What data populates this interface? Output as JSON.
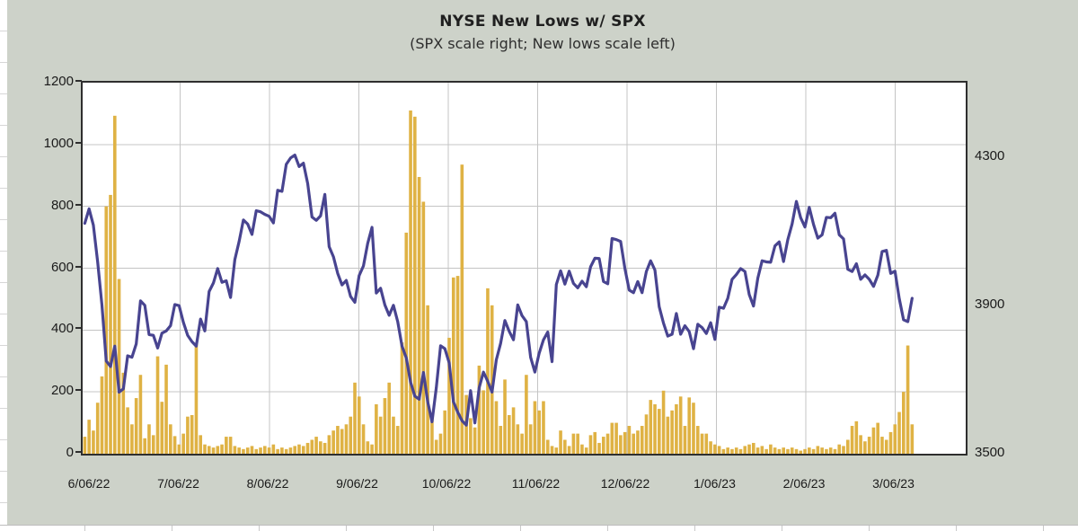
{
  "chart": {
    "title": "NYSE New Lows w/ SPX",
    "subtitle": "(SPX scale right; New lows scale left)"
  },
  "colors": {
    "chart_background": "#cdd2c9",
    "plot_background": "#ffffff",
    "bar_color": "#dfb244",
    "line_color": "#484490",
    "gridline_color": "#c4c4c4",
    "axis_text_color": "#1a1a1a",
    "plot_border_color": "#2e2e2e"
  },
  "chart_data": {
    "type": "bar",
    "subtype": "bar-and-line combo, daily data",
    "title": "NYSE New Lows w/ SPX",
    "subtitle": "(SPX scale right; New lows scale left)",
    "grid": "horizontal and vertical major gridlines",
    "legend": "none",
    "left_axis": {
      "title": "New lows",
      "min": 0,
      "max": 1200,
      "tick_step": 200,
      "tick_labels": [
        "0",
        "200",
        "400",
        "600",
        "800",
        "1000",
        "1200"
      ]
    },
    "right_axis": {
      "title": "SPX",
      "min": 3500,
      "max": 4500,
      "tick_values": [
        3500,
        3900,
        4300
      ],
      "tick_labels": [
        "3500",
        "3900",
        "4300"
      ]
    },
    "x_axis_tick_labels": [
      "6/06/22",
      "7/06/22",
      "8/06/22",
      "9/06/22",
      "10/06/22",
      "11/06/22",
      "12/06/22",
      "1/06/23",
      "2/06/23",
      "3/06/23"
    ],
    "x": [
      "2022-06-06",
      "2022-06-07",
      "2022-06-08",
      "2022-06-09",
      "2022-06-10",
      "2022-06-13",
      "2022-06-14",
      "2022-06-15",
      "2022-06-16",
      "2022-06-17",
      "2022-06-21",
      "2022-06-22",
      "2022-06-23",
      "2022-06-24",
      "2022-06-27",
      "2022-06-28",
      "2022-06-29",
      "2022-06-30",
      "2022-07-01",
      "2022-07-05",
      "2022-07-06",
      "2022-07-07",
      "2022-07-08",
      "2022-07-11",
      "2022-07-12",
      "2022-07-13",
      "2022-07-14",
      "2022-07-15",
      "2022-07-18",
      "2022-07-19",
      "2022-07-20",
      "2022-07-21",
      "2022-07-22",
      "2022-07-25",
      "2022-07-26",
      "2022-07-27",
      "2022-07-28",
      "2022-07-29",
      "2022-08-01",
      "2022-08-02",
      "2022-08-03",
      "2022-08-04",
      "2022-08-05",
      "2022-08-08",
      "2022-08-09",
      "2022-08-10",
      "2022-08-11",
      "2022-08-12",
      "2022-08-15",
      "2022-08-16",
      "2022-08-17",
      "2022-08-18",
      "2022-08-19",
      "2022-08-22",
      "2022-08-23",
      "2022-08-24",
      "2022-08-25",
      "2022-08-26",
      "2022-08-29",
      "2022-08-30",
      "2022-08-31",
      "2022-09-01",
      "2022-09-02",
      "2022-09-06",
      "2022-09-07",
      "2022-09-08",
      "2022-09-09",
      "2022-09-12",
      "2022-09-13",
      "2022-09-14",
      "2022-09-15",
      "2022-09-16",
      "2022-09-19",
      "2022-09-20",
      "2022-09-21",
      "2022-09-22",
      "2022-09-23",
      "2022-09-26",
      "2022-09-27",
      "2022-09-28",
      "2022-09-29",
      "2022-09-30",
      "2022-10-03",
      "2022-10-04",
      "2022-10-05",
      "2022-10-06",
      "2022-10-07",
      "2022-10-10",
      "2022-10-11",
      "2022-10-12",
      "2022-10-13",
      "2022-10-14",
      "2022-10-17",
      "2022-10-18",
      "2022-10-19",
      "2022-10-20",
      "2022-10-21",
      "2022-10-24",
      "2022-10-25",
      "2022-10-26",
      "2022-10-27",
      "2022-10-28",
      "2022-10-31",
      "2022-11-01",
      "2022-11-02",
      "2022-11-03",
      "2022-11-04",
      "2022-11-07",
      "2022-11-08",
      "2022-11-09",
      "2022-11-10",
      "2022-11-11",
      "2022-11-14",
      "2022-11-15",
      "2022-11-16",
      "2022-11-17",
      "2022-11-18",
      "2022-11-21",
      "2022-11-22",
      "2022-11-23",
      "2022-11-25",
      "2022-11-28",
      "2022-11-29",
      "2022-11-30",
      "2022-12-01",
      "2022-12-02",
      "2022-12-05",
      "2022-12-06",
      "2022-12-07",
      "2022-12-08",
      "2022-12-09",
      "2022-12-12",
      "2022-12-13",
      "2022-12-14",
      "2022-12-15",
      "2022-12-16",
      "2022-12-19",
      "2022-12-20",
      "2022-12-21",
      "2022-12-22",
      "2022-12-23",
      "2022-12-27",
      "2022-12-28",
      "2022-12-29",
      "2022-12-30",
      "2023-01-03",
      "2023-01-04",
      "2023-01-05",
      "2023-01-06",
      "2023-01-09",
      "2023-01-10",
      "2023-01-11",
      "2023-01-12",
      "2023-01-13",
      "2023-01-17",
      "2023-01-18",
      "2023-01-19",
      "2023-01-20",
      "2023-01-23",
      "2023-01-24",
      "2023-01-25",
      "2023-01-26",
      "2023-01-27",
      "2023-01-30",
      "2023-01-31",
      "2023-02-01",
      "2023-02-02",
      "2023-02-03",
      "2023-02-06",
      "2023-02-07",
      "2023-02-08",
      "2023-02-09",
      "2023-02-10",
      "2023-02-13",
      "2023-02-14",
      "2023-02-15",
      "2023-02-16",
      "2023-02-17",
      "2023-02-21",
      "2023-02-22",
      "2023-02-23",
      "2023-02-24",
      "2023-02-27",
      "2023-02-28",
      "2023-03-01",
      "2023-03-02",
      "2023-03-03",
      "2023-03-06",
      "2023-03-07",
      "2023-03-08",
      "2023-03-09",
      "2023-03-10",
      "2023-03-13",
      "2023-03-14"
    ],
    "series": [
      {
        "name": "NYSE New Lows",
        "type": "bar",
        "axis": "left",
        "color": "#dfb244",
        "values": [
          55,
          110,
          75,
          165,
          250,
          800,
          837,
          1093,
          565,
          262,
          150,
          95,
          180,
          255,
          50,
          95,
          60,
          315,
          168,
          288,
          95,
          57,
          30,
          65,
          120,
          125,
          355,
          60,
          30,
          25,
          20,
          25,
          30,
          55,
          55,
          25,
          20,
          15,
          20,
          25,
          15,
          20,
          25,
          20,
          30,
          15,
          20,
          15,
          20,
          25,
          30,
          25,
          35,
          45,
          55,
          40,
          35,
          60,
          75,
          90,
          80,
          95,
          120,
          230,
          185,
          95,
          40,
          30,
          160,
          120,
          180,
          230,
          120,
          90,
          360,
          715,
          1110,
          1090,
          895,
          815,
          480,
          130,
          45,
          65,
          140,
          375,
          570,
          575,
          935,
          190,
          115,
          85,
          285,
          205,
          535,
          480,
          170,
          90,
          240,
          125,
          150,
          95,
          65,
          255,
          95,
          170,
          140,
          170,
          45,
          25,
          20,
          75,
          45,
          25,
          65,
          65,
          30,
          20,
          60,
          70,
          35,
          55,
          65,
          100,
          100,
          60,
          70,
          90,
          65,
          75,
          90,
          127,
          174,
          160,
          145,
          204,
          120,
          140,
          160,
          185,
          90,
          182,
          165,
          90,
          65,
          65,
          40,
          30,
          25,
          15,
          20,
          15,
          20,
          15,
          25,
          30,
          35,
          20,
          25,
          15,
          30,
          20,
          15,
          20,
          15,
          20,
          15,
          10,
          15,
          20,
          15,
          25,
          20,
          15,
          20,
          15,
          30,
          25,
          45,
          90,
          105,
          60,
          40,
          55,
          85,
          100,
          55,
          45,
          70,
          95,
          135,
          200,
          350,
          95
        ]
      },
      {
        "name": "SPX",
        "type": "line",
        "axis": "right",
        "color": "#484490",
        "values": [
          4121,
          4160,
          4116,
          4017,
          3901,
          3750,
          3735,
          3790,
          3666,
          3675,
          3764,
          3760,
          3796,
          3912,
          3900,
          3821,
          3819,
          3785,
          3825,
          3831,
          3845,
          3902,
          3899,
          3854,
          3819,
          3802,
          3790,
          3863,
          3831,
          3937,
          3960,
          3999,
          3962,
          3966,
          3921,
          4023,
          4072,
          4130,
          4119,
          4091,
          4155,
          4152,
          4145,
          4140,
          4122,
          4210,
          4207,
          4280,
          4297,
          4305,
          4274,
          4283,
          4228,
          4138,
          4129,
          4141,
          4199,
          4058,
          4031,
          3986,
          3955,
          3967,
          3924,
          3908,
          3980,
          4006,
          4067,
          4110,
          3933,
          3946,
          3901,
          3873,
          3900,
          3856,
          3790,
          3758,
          3693,
          3655,
          3647,
          3719,
          3640,
          3586,
          3678,
          3791,
          3783,
          3745,
          3640,
          3612,
          3589,
          3577,
          3670,
          3583,
          3678,
          3720,
          3695,
          3666,
          3753,
          3797,
          3859,
          3830,
          3807,
          3901,
          3872,
          3856,
          3760,
          3720,
          3771,
          3807,
          3828,
          3748,
          3956,
          3993,
          3957,
          3992,
          3959,
          3947,
          3965,
          3950,
          4004,
          4027,
          4026,
          3964,
          3958,
          4080,
          4077,
          4072,
          3999,
          3941,
          3934,
          3964,
          3934,
          3991,
          4020,
          3995,
          3896,
          3852,
          3817,
          3822,
          3878,
          3822,
          3845,
          3829,
          3783,
          3849,
          3840,
          3824,
          3853,
          3808,
          3895,
          3892,
          3919,
          3970,
          3983,
          3999,
          3991,
          3929,
          3898,
          3973,
          4020,
          4017,
          4016,
          4060,
          4071,
          4018,
          4077,
          4119,
          4180,
          4136,
          4111,
          4164,
          4118,
          4081,
          4090,
          4137,
          4136,
          4148,
          4090,
          4079,
          3997,
          3991,
          4012,
          3970,
          3982,
          3970,
          3951,
          3981,
          4045,
          4048,
          3986,
          3992,
          3918,
          3861,
          3856,
          3919
        ]
      }
    ]
  }
}
